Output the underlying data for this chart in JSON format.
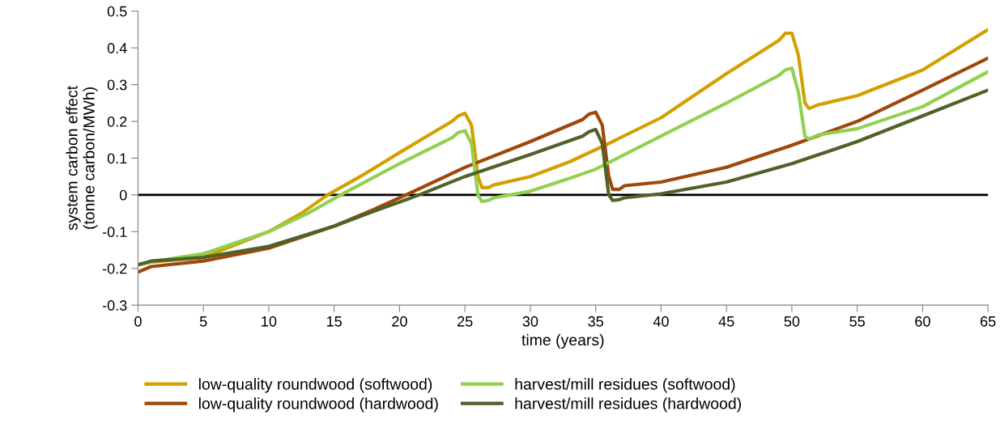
{
  "chart_data": {
    "type": "line",
    "xlabel": "time (years)",
    "ylabel": "system carbon effect\n(tonne carbon/MWh)",
    "xlim": [
      0,
      65
    ],
    "xticks": [
      0,
      5,
      10,
      15,
      20,
      25,
      30,
      35,
      40,
      45,
      50,
      55,
      60,
      65
    ],
    "ylim": [
      -0.3,
      0.5
    ],
    "yticks": [
      -0.3,
      -0.2,
      -0.1,
      0,
      0.1,
      0.2,
      0.3,
      0.4,
      0.5
    ],
    "grid": false,
    "legend": "bottom",
    "marker": "none",
    "line_style": "solid",
    "ref_lines": [
      {
        "axis": "y",
        "value": 0,
        "color": "#000000"
      }
    ],
    "series": [
      {
        "name": "low-quality roundwood (softwood)",
        "color": "#d4a000",
        "x": [
          0,
          1,
          5,
          10,
          12.5,
          14.5,
          17,
          20,
          24,
          24.5,
          25,
          25.5,
          26,
          26.3,
          26.8,
          27.2,
          30,
          33,
          36,
          40,
          45,
          49,
          49.5,
          50,
          50.5,
          51,
          51.3,
          52,
          55,
          60,
          65
        ],
        "values": [
          -0.19,
          -0.183,
          -0.17,
          -0.1,
          -0.05,
          0.0,
          0.05,
          0.115,
          0.2,
          0.215,
          0.222,
          0.19,
          0.05,
          0.02,
          0.02,
          0.027,
          0.05,
          0.09,
          0.14,
          0.21,
          0.33,
          0.42,
          0.44,
          0.44,
          0.38,
          0.25,
          0.235,
          0.245,
          0.27,
          0.34,
          0.45
        ]
      },
      {
        "name": "low-quality roundwood (hardwood)",
        "color": "#a0480c",
        "x": [
          0,
          1,
          5,
          10,
          15,
          18,
          20.5,
          25,
          30,
          34,
          34.5,
          35,
          35.5,
          36,
          36.3,
          36.8,
          37.2,
          40,
          45,
          50,
          55,
          60,
          65
        ],
        "values": [
          -0.21,
          -0.195,
          -0.18,
          -0.145,
          -0.085,
          -0.04,
          0.0,
          0.075,
          0.145,
          0.205,
          0.22,
          0.225,
          0.19,
          0.05,
          0.015,
          0.015,
          0.025,
          0.035,
          0.075,
          0.135,
          0.2,
          0.285,
          0.372
        ]
      },
      {
        "name": "harvest/mill residues (softwood)",
        "color": "#92d050",
        "x": [
          0,
          1,
          5,
          10,
          13,
          15.5,
          20,
          24,
          24.5,
          25,
          25.5,
          26,
          26.3,
          26.8,
          27.2,
          30,
          33,
          35,
          40,
          45,
          49,
          49.5,
          50,
          50.5,
          51,
          51.3,
          52,
          55,
          60,
          65
        ],
        "values": [
          -0.19,
          -0.182,
          -0.16,
          -0.1,
          -0.05,
          0.0,
          0.085,
          0.155,
          0.17,
          0.175,
          0.14,
          0.0,
          -0.018,
          -0.015,
          -0.008,
          0.01,
          0.045,
          0.07,
          0.16,
          0.25,
          0.325,
          0.34,
          0.345,
          0.28,
          0.16,
          0.152,
          0.163,
          0.18,
          0.24,
          0.335
        ]
      },
      {
        "name": "harvest/mill residues (hardwood)",
        "color": "#4f6228",
        "x": [
          0,
          1,
          5,
          10,
          15,
          18,
          21.5,
          25,
          30,
          34,
          34.5,
          35,
          35.5,
          36,
          36.3,
          36.8,
          37.2,
          40,
          45,
          50,
          55,
          60,
          65
        ],
        "values": [
          -0.19,
          -0.18,
          -0.17,
          -0.14,
          -0.085,
          -0.045,
          0.0,
          0.05,
          0.11,
          0.16,
          0.172,
          0.178,
          0.14,
          0.0,
          -0.015,
          -0.013,
          -0.008,
          0.003,
          0.035,
          0.085,
          0.145,
          0.215,
          0.285
        ]
      }
    ]
  }
}
